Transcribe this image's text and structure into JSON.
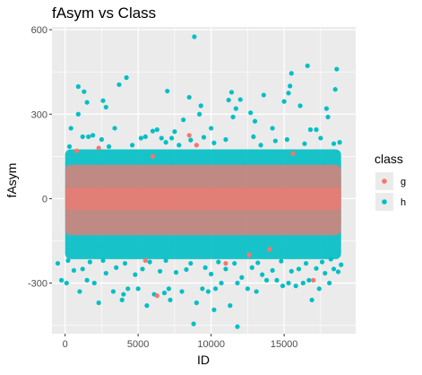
{
  "chart_data": {
    "type": "scatter",
    "title": "fAsym vs Class",
    "xlabel": "ID",
    "ylabel": "fAsym",
    "xlim": [
      -900,
      19900
    ],
    "ylim": [
      -480,
      610
    ],
    "x_ticks": [
      0,
      5000,
      10000,
      15000
    ],
    "x_tick_labels": [
      "0",
      "5000",
      "10000",
      "15000"
    ],
    "y_ticks": [
      -300,
      0,
      300,
      600
    ],
    "y_tick_labels": [
      "-300",
      "0",
      "300",
      "600"
    ],
    "grid": true,
    "panel_background": "#ebebeb",
    "legend": {
      "title": "class",
      "placement": "right",
      "entries": [
        {
          "label": "g",
          "color": "#f8766d"
        },
        {
          "label": "h",
          "color": "#00bfc4"
        }
      ]
    },
    "series": [
      {
        "name": "g",
        "color": "#f8766d",
        "points": [
          [
            6300,
            -345
          ],
          [
            8500,
            225
          ],
          [
            6000,
            150
          ],
          [
            12600,
            -200
          ],
          [
            2300,
            180
          ],
          [
            14000,
            -180
          ],
          [
            17000,
            -290
          ],
          [
            5500,
            -220
          ],
          [
            9000,
            190
          ],
          [
            800,
            170
          ],
          [
            15600,
            160
          ],
          [
            11000,
            -230
          ]
        ]
      },
      {
        "name": "h",
        "color": "#00bfc4",
        "points": [
          [
            8850,
            575
          ],
          [
            16600,
            472
          ],
          [
            18600,
            460
          ],
          [
            15500,
            445
          ],
          [
            4200,
            430
          ],
          [
            3700,
            405
          ],
          [
            900,
            398
          ],
          [
            15400,
            400
          ],
          [
            18500,
            388
          ],
          [
            15300,
            375
          ],
          [
            1300,
            380
          ],
          [
            11400,
            378
          ],
          [
            7000,
            382
          ],
          [
            13600,
            368
          ],
          [
            8500,
            360
          ],
          [
            12000,
            352
          ],
          [
            11200,
            350
          ],
          [
            2600,
            348
          ],
          [
            15000,
            345
          ],
          [
            1500,
            342
          ],
          [
            2800,
            325
          ],
          [
            11700,
            320
          ],
          [
            16100,
            330
          ],
          [
            17900,
            320
          ],
          [
            9300,
            330
          ],
          [
            900,
            300
          ],
          [
            12700,
            305
          ],
          [
            9200,
            300
          ],
          [
            18000,
            290
          ],
          [
            8100,
            280
          ],
          [
            400,
            250
          ],
          [
            11500,
            290
          ],
          [
            13000,
            275
          ],
          [
            3400,
            250
          ],
          [
            14200,
            250
          ],
          [
            17200,
            245
          ],
          [
            6300,
            245
          ],
          [
            6000,
            240
          ],
          [
            10000,
            250
          ],
          [
            7500,
            238
          ],
          [
            16800,
            245
          ],
          [
            1200,
            220
          ],
          [
            1600,
            220
          ],
          [
            1900,
            225
          ],
          [
            2500,
            210
          ],
          [
            5200,
            215
          ],
          [
            5500,
            220
          ],
          [
            6600,
            215
          ],
          [
            7300,
            215
          ],
          [
            8600,
            208
          ],
          [
            9500,
            218
          ],
          [
            11000,
            210
          ],
          [
            12900,
            220
          ],
          [
            14400,
            205
          ],
          [
            15200,
            210
          ],
          [
            17500,
            215
          ],
          [
            18800,
            200
          ],
          [
            300,
            185
          ],
          [
            18400,
            195
          ],
          [
            4600,
            190
          ],
          [
            6900,
            200
          ],
          [
            13400,
            190
          ],
          [
            16400,
            195
          ],
          [
            10200,
            198
          ],
          [
            3000,
            185
          ],
          [
            7800,
            190
          ],
          [
            -500,
            -230
          ],
          [
            -250,
            -290
          ],
          [
            100,
            -300
          ],
          [
            1000,
            -330
          ],
          [
            1500,
            -290
          ],
          [
            2000,
            -300
          ],
          [
            3300,
            -330
          ],
          [
            4000,
            -340
          ],
          [
            4300,
            -320
          ],
          [
            5000,
            -320
          ],
          [
            5600,
            -380
          ],
          [
            6100,
            -340
          ],
          [
            6800,
            -335
          ],
          [
            7100,
            -320
          ],
          [
            8000,
            -330
          ],
          [
            9400,
            -320
          ],
          [
            9800,
            -330
          ],
          [
            10300,
            -320
          ],
          [
            10700,
            -300
          ],
          [
            11800,
            -300
          ],
          [
            12500,
            -320
          ],
          [
            13100,
            -330
          ],
          [
            13800,
            -290
          ],
          [
            14500,
            -290
          ],
          [
            14900,
            -310
          ],
          [
            15300,
            -300
          ],
          [
            15800,
            -310
          ],
          [
            16300,
            -300
          ],
          [
            16700,
            -290
          ],
          [
            17400,
            -320
          ],
          [
            18100,
            -300
          ],
          [
            18700,
            -260
          ],
          [
            8800,
            -445
          ],
          [
            11800,
            -455
          ],
          [
            10200,
            -395
          ],
          [
            7200,
            -360
          ],
          [
            2300,
            -370
          ],
          [
            11300,
            -380
          ],
          [
            16900,
            -360
          ],
          [
            3900,
            -360
          ],
          [
            9000,
            -370
          ],
          [
            13500,
            -270
          ],
          [
            12100,
            -280
          ],
          [
            600,
            -255
          ],
          [
            2800,
            -265
          ],
          [
            4800,
            -270
          ],
          [
            7600,
            -262
          ],
          [
            10000,
            -268
          ],
          [
            15500,
            -258
          ],
          [
            17800,
            -265
          ],
          [
            18400,
            -250
          ],
          [
            1200,
            -250
          ],
          [
            3500,
            -245
          ],
          [
            5300,
            -250
          ],
          [
            6500,
            -258
          ],
          [
            8300,
            -252
          ],
          [
            9600,
            -245
          ],
          [
            11000,
            -250
          ],
          [
            12800,
            -245
          ],
          [
            14200,
            -255
          ],
          [
            16000,
            -250
          ],
          [
            17200,
            -248
          ],
          [
            18900,
            -235
          ],
          [
            200,
            -220
          ],
          [
            1700,
            -225
          ],
          [
            2600,
            -220
          ],
          [
            4100,
            -230
          ],
          [
            5800,
            -225
          ],
          [
            6900,
            -220
          ],
          [
            8600,
            -230
          ],
          [
            10500,
            -225
          ],
          [
            11600,
            -230
          ],
          [
            13200,
            -228
          ],
          [
            14800,
            -222
          ],
          [
            16500,
            -230
          ],
          [
            17600,
            -225
          ],
          [
            18200,
            -215
          ]
        ]
      }
    ]
  }
}
